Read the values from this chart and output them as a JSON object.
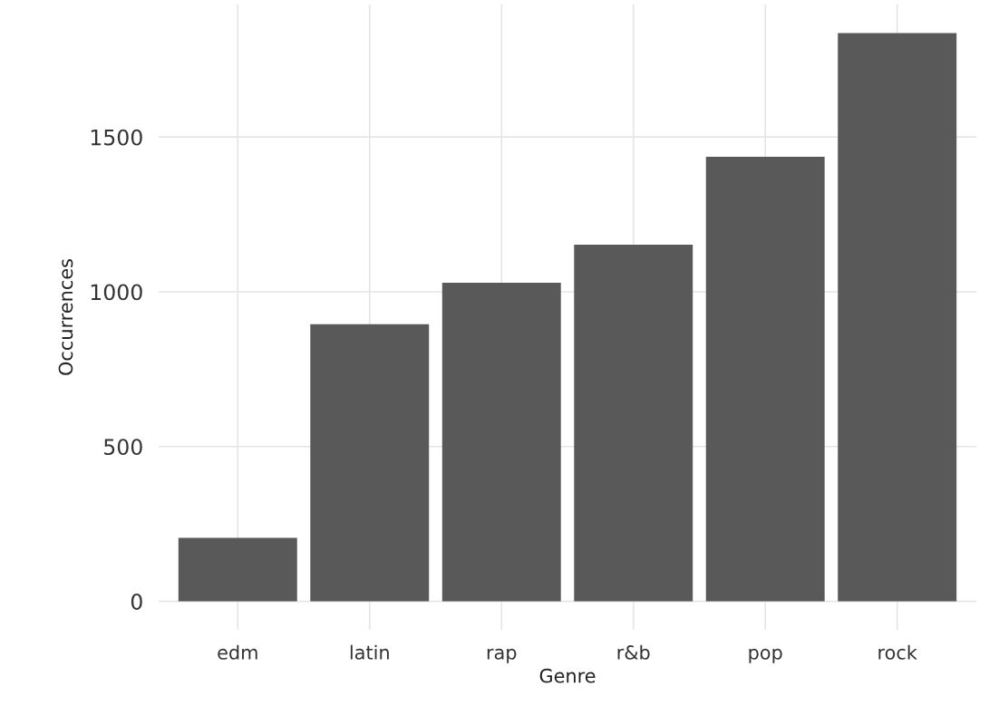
{
  "chart_data": {
    "type": "bar",
    "xlabel": "Genre",
    "ylabel": "Occurrences",
    "categories": [
      "edm",
      "latin",
      "rap",
      "r&b",
      "pop",
      "rock"
    ],
    "values": [
      205,
      895,
      1029,
      1152,
      1436,
      1836
    ],
    "color": "#595959",
    "ylim": [
      -92,
      1928
    ],
    "yticks": [
      0,
      500,
      1000,
      1500
    ],
    "grid": true
  }
}
